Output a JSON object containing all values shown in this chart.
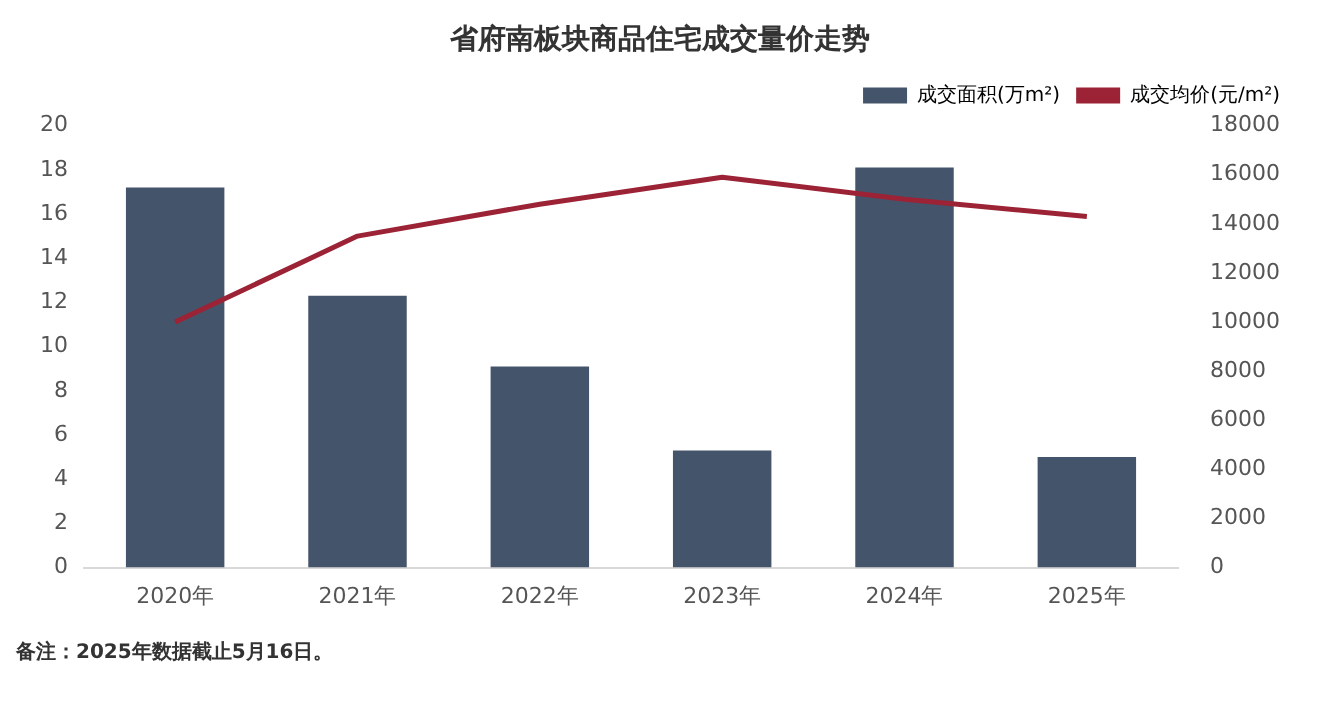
{
  "chart_data": {
    "type": "bar",
    "title": "省府南板块商品住宅成交量价走势",
    "categories": [
      "2020年",
      "2021年",
      "2022年",
      "2023年",
      "2024年",
      "2025年"
    ],
    "series": [
      {
        "name": "成交面积(万m²)",
        "color": "#44546a",
        "values": [
          17.2,
          12.3,
          9.1,
          5.3,
          18.1,
          5.0
        ]
      },
      {
        "name": "成交均价(元/m²)",
        "type": "line",
        "axis": "y2",
        "color": "#9b2335",
        "values": [
          10000,
          13500,
          14800,
          15900,
          15000,
          14300
        ]
      }
    ],
    "ylim": [
      0,
      20
    ],
    "yticks": [
      0,
      2,
      4,
      6,
      8,
      10,
      12,
      14,
      16,
      18,
      20
    ],
    "y2lim": [
      0,
      18000
    ],
    "y2ticks": [
      0,
      2000,
      4000,
      6000,
      8000,
      10000,
      12000,
      14000,
      16000,
      18000
    ],
    "grid": false,
    "legend": "top right",
    "marker": "none",
    "line_style": "solid",
    "annotations": [
      "备注：2025年数据截止5月16日。"
    ]
  }
}
